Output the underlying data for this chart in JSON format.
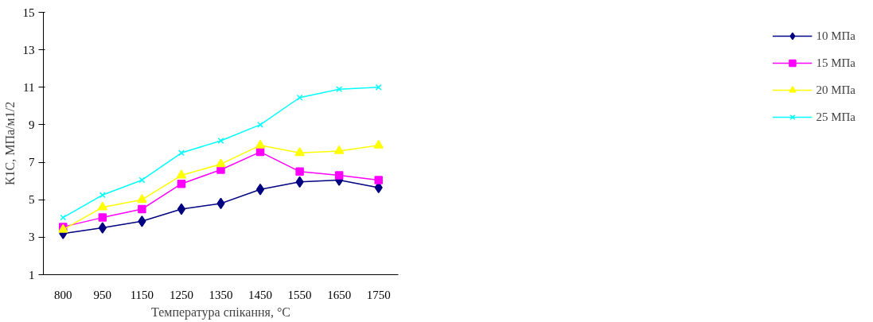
{
  "chart_data": {
    "type": "line",
    "xlabel": "Температура спікання, °С",
    "ylabel": "К1С, МПа/м1/2",
    "categories": [
      "800",
      "950",
      "1150",
      "1250",
      "1350",
      "1450",
      "1550",
      "1650",
      "1750"
    ],
    "ylim": [
      1,
      15
    ],
    "yticks": [
      1,
      3,
      5,
      7,
      9,
      11,
      13,
      15
    ],
    "grid": false,
    "legend": "right",
    "series": [
      {
        "name": "10 МПа",
        "color": "#000080",
        "marker": "diamond",
        "values": [
          3.2,
          3.5,
          3.85,
          4.5,
          4.8,
          5.55,
          5.95,
          6.05,
          5.65
        ]
      },
      {
        "name": "15 МПа",
        "color": "#ff00ff",
        "marker": "square",
        "values": [
          3.55,
          4.05,
          4.5,
          5.85,
          6.6,
          7.55,
          6.5,
          6.3,
          6.05
        ]
      },
      {
        "name": "20 МПа",
        "color": "#ffff00",
        "marker": "triangle",
        "values": [
          3.4,
          4.6,
          5.0,
          6.3,
          6.9,
          7.9,
          7.5,
          7.6,
          7.9
        ]
      },
      {
        "name": "25 МПа",
        "color": "#00ffff",
        "marker": "cross",
        "values": [
          4.05,
          5.25,
          6.05,
          7.5,
          8.15,
          9.0,
          10.45,
          10.9,
          11.0
        ]
      }
    ]
  }
}
